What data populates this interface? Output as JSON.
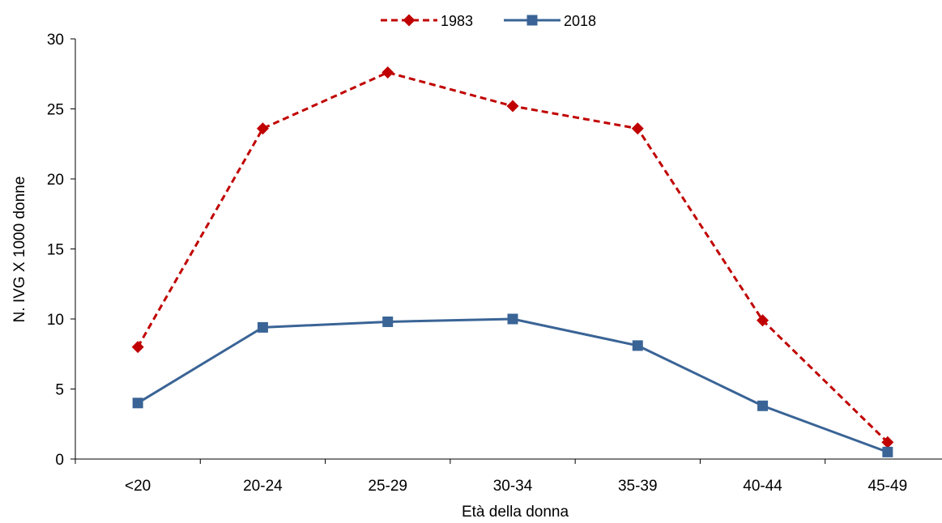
{
  "chart_data": {
    "type": "line",
    "categories": [
      "<20",
      "20-24",
      "25-29",
      "30-34",
      "35-39",
      "40-44",
      "45-49"
    ],
    "series": [
      {
        "name": "1983",
        "values": [
          8.0,
          23.6,
          27.6,
          25.2,
          23.6,
          9.9,
          1.2
        ],
        "color": "#c00000",
        "line_style": "dashed",
        "marker": "diamond"
      },
      {
        "name": "2018",
        "values": [
          4.0,
          9.4,
          9.8,
          10.0,
          8.1,
          3.8,
          0.5
        ],
        "color": "#3a6496",
        "line_style": "solid",
        "marker": "square"
      }
    ],
    "xlabel": "Età della donna",
    "ylabel": "N. IVG X 1000  donne",
    "ylim": [
      0,
      30
    ],
    "yticks": [
      0,
      5,
      10,
      15,
      20,
      25,
      30
    ],
    "grid": false,
    "legend_position": "top-center"
  }
}
